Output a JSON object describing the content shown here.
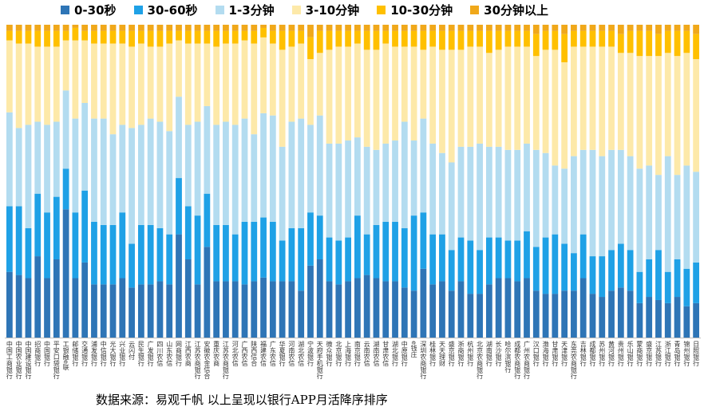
{
  "chart_data": {
    "type": "bar",
    "stacked": true,
    "normalized": true,
    "ylim": [
      0,
      100
    ],
    "grid": false,
    "legend_position": "top",
    "categories": [
      "中国工商银行",
      "中国农业银行",
      "中国建设银行",
      "招商银行",
      "中国银行",
      "平安口袋银行",
      "工银融e联",
      "邮储银行",
      "交通银行",
      "浦发银行",
      "中信银行",
      "光大银行",
      "兴业银行",
      "云闪付",
      "民生银行",
      "广发银行",
      "四川农信",
      "山东农信",
      "网商银行",
      "江西农商",
      "江苏农商银行",
      "安徽农金信合",
      "重庆农商",
      "江苏农商银行",
      "河北农信",
      "广西农信",
      "陕西信合",
      "福建农信",
      "广东农信",
      "华夏银行",
      "河南农信",
      "湖北农信",
      "宁波银行",
      "天府手机银行",
      "微众银行",
      "北京银行",
      "上海银行",
      "南京银行",
      "云南农信",
      "湖南农信",
      "甘肃农信",
      "湖北银行",
      "中原银行",
      "e钱庄",
      "深圳农商银行",
      "桂林银行",
      "天天理财",
      "盛京银行",
      "浙商银行",
      "杭州银行",
      "北京农商银行",
      "湖南银行",
      "长沙银行",
      "哈尔滨银行",
      "成都农商银行",
      "广州农商银行",
      "汉口银行",
      "渤海银行",
      "甘肃银行",
      "天津银行",
      "东莞农商银行",
      "吉林银行",
      "成都银行",
      "苏州银行",
      "黄河银行",
      "贵州银行",
      "乐山银行",
      "蒙商银行",
      "盛京银行",
      "江苏银行",
      "浙江银行",
      "青岛银行",
      "锦州银行",
      "日照银行"
    ],
    "series": [
      {
        "name": "0-30秒",
        "color": "#2e75b6",
        "values": [
          21,
          20,
          19,
          26,
          19,
          25,
          41,
          19,
          24,
          17,
          17,
          17,
          19,
          16,
          17,
          17,
          18,
          17,
          33,
          25,
          17,
          29,
          18,
          18,
          18,
          17,
          18,
          19,
          18,
          18,
          18,
          15,
          23,
          25,
          18,
          17,
          18,
          19,
          20,
          19,
          18,
          18,
          16,
          15,
          22,
          17,
          18,
          15,
          18,
          14,
          14,
          17,
          19,
          19,
          18,
          19,
          15,
          14,
          14,
          15,
          15,
          19,
          14,
          13,
          15,
          16,
          15,
          11,
          13,
          12,
          11,
          13,
          10,
          11
        ]
      },
      {
        "name": "30-60秒",
        "color": "#1fa1e6",
        "values": [
          21,
          22,
          16,
          20,
          21,
          20,
          13,
          21,
          23,
          20,
          19,
          19,
          21,
          14,
          19,
          19,
          17,
          16,
          18,
          17,
          22,
          17,
          18,
          18,
          15,
          20,
          19,
          19,
          19,
          13,
          17,
          20,
          17,
          14,
          14,
          14,
          14,
          20,
          13,
          17,
          19,
          19,
          19,
          24,
          18,
          16,
          15,
          13,
          14,
          17,
          14,
          15,
          13,
          12,
          13,
          15,
          14,
          18,
          19,
          15,
          12,
          14,
          12,
          13,
          13,
          14,
          13,
          10,
          12,
          16,
          10,
          12,
          12,
          13
        ]
      },
      {
        "name": "1-3分钟",
        "color": "#b3dcf0",
        "values": [
          30,
          25,
          33,
          23,
          28,
          24,
          25,
          30,
          28,
          33,
          34,
          29,
          28,
          37,
          32,
          34,
          34,
          33,
          26,
          26,
          30,
          28,
          32,
          33,
          35,
          33,
          28,
          33,
          34,
          30,
          34,
          35,
          28,
          32,
          30,
          31,
          31,
          25,
          28,
          24,
          25,
          26,
          34,
          24,
          30,
          29,
          26,
          28,
          29,
          30,
          34,
          29,
          29,
          29,
          29,
          28,
          31,
          27,
          22,
          24,
          31,
          27,
          34,
          32,
          32,
          30,
          30,
          33,
          30,
          24,
          37,
          27,
          33,
          29
        ]
      },
      {
        "name": "3-10分钟",
        "color": "#fde9a9",
        "values": [
          23,
          27,
          26,
          24,
          25,
          24,
          16,
          25,
          20,
          24,
          24,
          29,
          26,
          26,
          26,
          23,
          24,
          28,
          18,
          26,
          25,
          20,
          25,
          25,
          26,
          25,
          29,
          24,
          23,
          31,
          24,
          24,
          21,
          20,
          30,
          31,
          30,
          30,
          31,
          32,
          32,
          30,
          24,
          30,
          22,
          31,
          33,
          36,
          31,
          32,
          31,
          30,
          31,
          33,
          33,
          31,
          30,
          33,
          37,
          34,
          35,
          33,
          33,
          35,
          33,
          31,
          33,
          36,
          35,
          38,
          33,
          38,
          36,
          36
        ]
      },
      {
        "name": "10-30分钟",
        "color": "#ffc000",
        "values": [
          3,
          4,
          4,
          5,
          5,
          5,
          3,
          4,
          3,
          4,
          4,
          4,
          4,
          5,
          4,
          5,
          5,
          4,
          3,
          4,
          4,
          4,
          5,
          4,
          4,
          3,
          4,
          3,
          4,
          6,
          5,
          4,
          7,
          7,
          6,
          5,
          5,
          4,
          6,
          6,
          4,
          5,
          5,
          5,
          6,
          5,
          6,
          6,
          6,
          5,
          5,
          7,
          6,
          5,
          5,
          5,
          7,
          6,
          6,
          9,
          5,
          5,
          5,
          5,
          5,
          6,
          7,
          8,
          8,
          7,
          7,
          8,
          7,
          8
        ]
      },
      {
        "name": "30分钟以上",
        "color": "#f0a81a",
        "values": [
          2,
          2,
          2,
          2,
          2,
          2,
          2,
          1,
          2,
          2,
          2,
          2,
          2,
          2,
          2,
          2,
          2,
          2,
          2,
          2,
          2,
          2,
          2,
          2,
          2,
          2,
          2,
          1,
          2,
          2,
          2,
          2,
          4,
          2,
          2,
          2,
          2,
          2,
          2,
          2,
          2,
          2,
          2,
          2,
          2,
          2,
          2,
          2,
          2,
          2,
          2,
          2,
          2,
          2,
          2,
          2,
          3,
          2,
          2,
          3,
          2,
          2,
          2,
          2,
          2,
          3,
          2,
          2,
          2,
          3,
          2,
          2,
          2,
          3
        ]
      }
    ]
  },
  "source_note": "数据来源：易观千帆 以上呈现以银行APP月活降序排序"
}
